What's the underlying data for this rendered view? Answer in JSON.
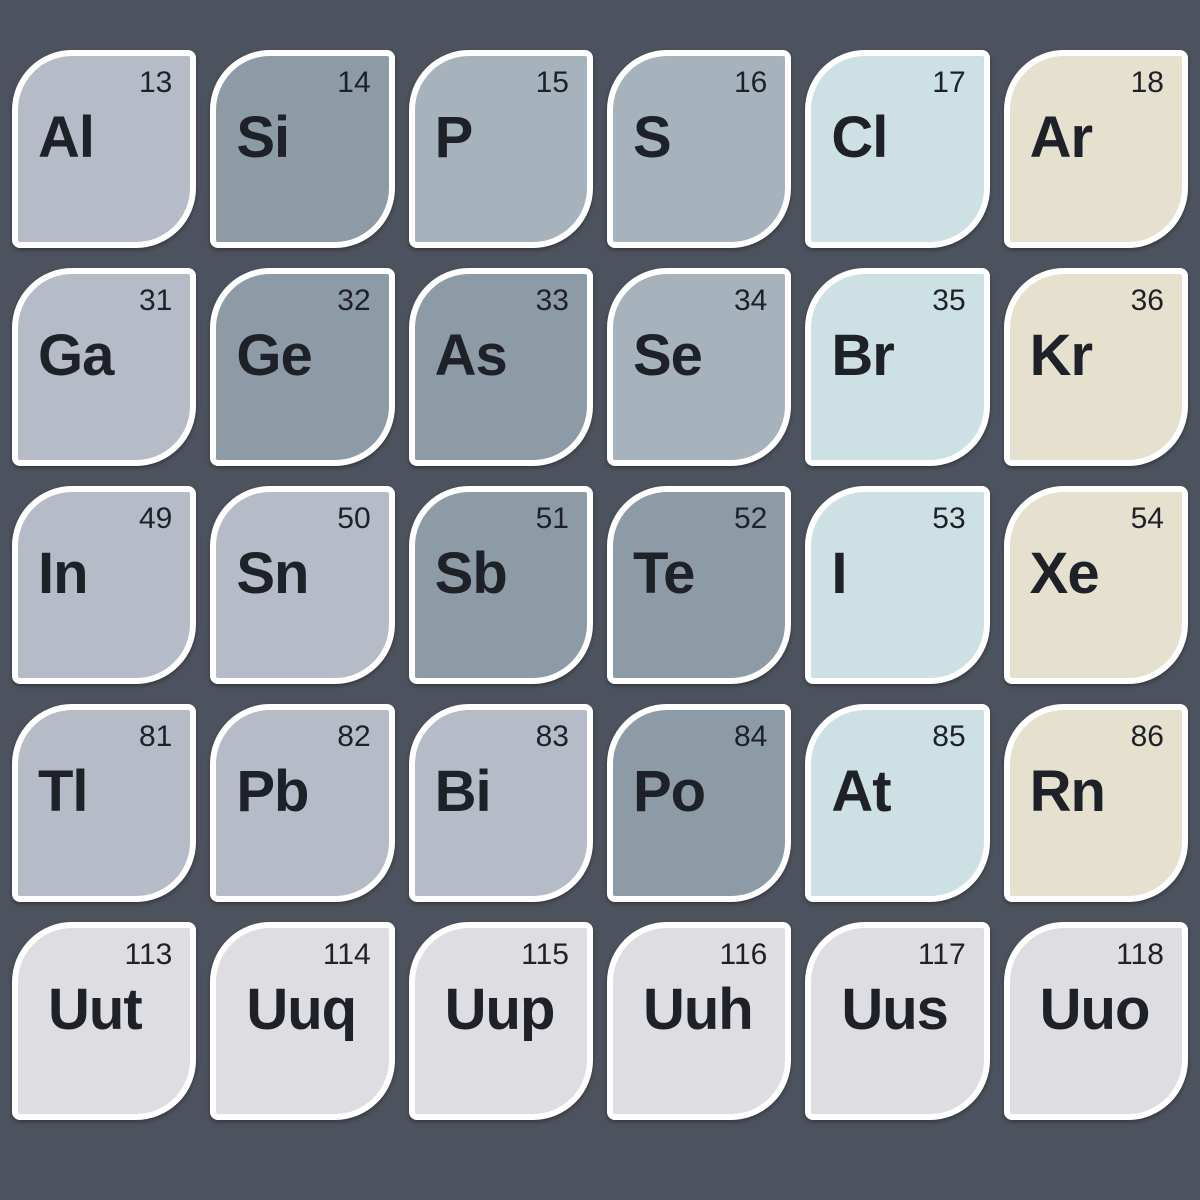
{
  "background_color": "#4d535e",
  "cell_border_color": "#ffffff",
  "text_color": "#1e2228",
  "number_fontsize": 30,
  "symbol_fontsize": 58,
  "tile_shape": {
    "border_radius_small": 8,
    "border_radius_large": 60,
    "border_width": 6
  },
  "colors": {
    "post_transition_metal": "#b5bbc7",
    "metalloid_dark": "#8d9ba7",
    "metalloid_mid": "#9ca9b4",
    "nonmetal": "#a6b2bc",
    "halogen": "#cde0e3",
    "noble_gas": "#e6e0cf",
    "unknown": "#dedee2"
  },
  "grid": {
    "cols": 6,
    "rows": 5
  },
  "elements": [
    {
      "number": 13,
      "symbol": "Al",
      "color": "#b5bbc7"
    },
    {
      "number": 14,
      "symbol": "Si",
      "color": "#8d9ba7"
    },
    {
      "number": 15,
      "symbol": "P",
      "color": "#a6b2bc"
    },
    {
      "number": 16,
      "symbol": "S",
      "color": "#a6b2bc"
    },
    {
      "number": 17,
      "symbol": "Cl",
      "color": "#cde0e3"
    },
    {
      "number": 18,
      "symbol": "Ar",
      "color": "#e6e0cf"
    },
    {
      "number": 31,
      "symbol": "Ga",
      "color": "#b5bbc7"
    },
    {
      "number": 32,
      "symbol": "Ge",
      "color": "#8d9ba7"
    },
    {
      "number": 33,
      "symbol": "As",
      "color": "#8d9ba7"
    },
    {
      "number": 34,
      "symbol": "Se",
      "color": "#a6b2bc"
    },
    {
      "number": 35,
      "symbol": "Br",
      "color": "#cde0e3"
    },
    {
      "number": 36,
      "symbol": "Kr",
      "color": "#e6e0cf"
    },
    {
      "number": 49,
      "symbol": "In",
      "color": "#b5bbc7"
    },
    {
      "number": 50,
      "symbol": "Sn",
      "color": "#b5bbc7"
    },
    {
      "number": 51,
      "symbol": "Sb",
      "color": "#8d9ba7"
    },
    {
      "number": 52,
      "symbol": "Te",
      "color": "#8d9ba7"
    },
    {
      "number": 53,
      "symbol": "I",
      "color": "#cde0e3"
    },
    {
      "number": 54,
      "symbol": "Xe",
      "color": "#e6e0cf"
    },
    {
      "number": 81,
      "symbol": "Tl",
      "color": "#b5bbc7"
    },
    {
      "number": 82,
      "symbol": "Pb",
      "color": "#b5bbc7"
    },
    {
      "number": 83,
      "symbol": "Bi",
      "color": "#b5bbc7"
    },
    {
      "number": 84,
      "symbol": "Po",
      "color": "#8d9ba7"
    },
    {
      "number": 85,
      "symbol": "At",
      "color": "#cde0e3"
    },
    {
      "number": 86,
      "symbol": "Rn",
      "color": "#e6e0cf"
    },
    {
      "number": 113,
      "symbol": "Uut",
      "color": "#dedee2"
    },
    {
      "number": 114,
      "symbol": "Uuq",
      "color": "#dedee2"
    },
    {
      "number": 115,
      "symbol": "Uup",
      "color": "#dedee2"
    },
    {
      "number": 116,
      "symbol": "Uuh",
      "color": "#dedee2"
    },
    {
      "number": 117,
      "symbol": "Uus",
      "color": "#dedee2"
    },
    {
      "number": 118,
      "symbol": "Uuo",
      "color": "#dedee2"
    }
  ]
}
